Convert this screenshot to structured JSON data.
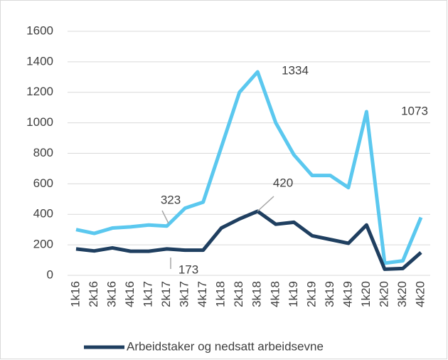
{
  "chart_data": {
    "type": "line",
    "categories": [
      "1k16",
      "2k16",
      "3k16",
      "4k16",
      "1k17",
      "2k17",
      "3k17",
      "4k17",
      "1k18",
      "2k18",
      "3k18",
      "4k18",
      "1k19",
      "2k19",
      "3k19",
      "4k19",
      "1k20",
      "2k20",
      "3k20",
      "4k20"
    ],
    "series": [
      {
        "color": "#5bc8ef",
        "values": [
          300,
          275,
          310,
          318,
          330,
          323,
          440,
          480,
          840,
          1200,
          1334,
          1000,
          790,
          655,
          655,
          575,
          1073,
          80,
          95,
          380
        ]
      },
      {
        "name": "Arbeidstaker og nedsatt arbeidsevne",
        "color": "#1f3f60",
        "values": [
          173,
          160,
          180,
          158,
          158,
          173,
          165,
          165,
          310,
          370,
          420,
          335,
          348,
          260,
          235,
          210,
          330,
          40,
          45,
          150
        ]
      }
    ],
    "ylim": [
      0,
      1600
    ],
    "yticks": [
      0,
      200,
      400,
      600,
      800,
      1000,
      1200,
      1400,
      1600
    ],
    "grid": true,
    "legend": "bottom"
  }
}
